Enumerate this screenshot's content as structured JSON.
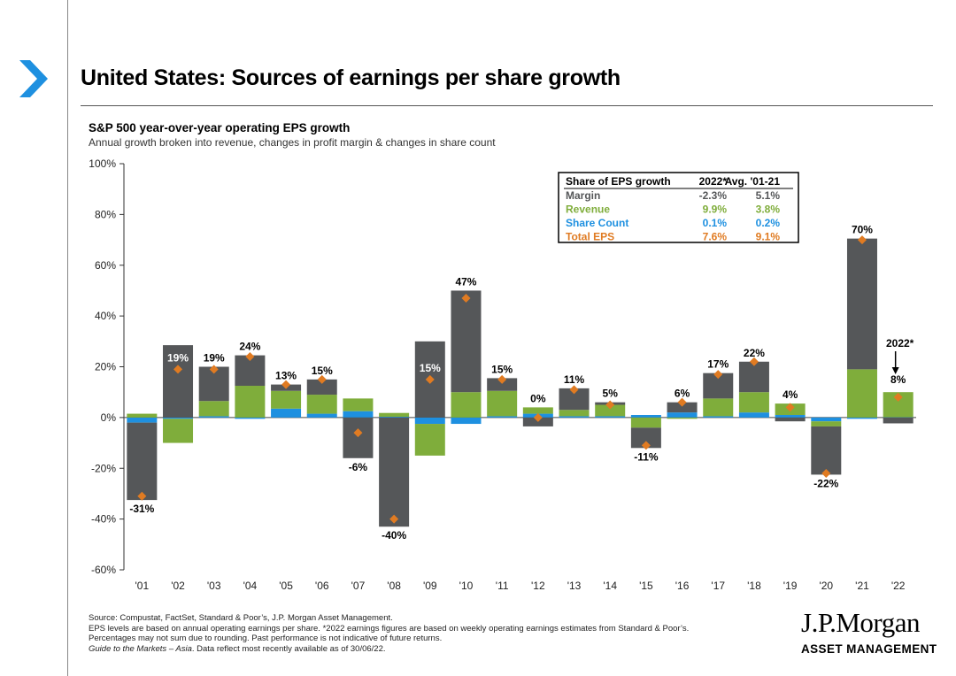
{
  "page": {
    "title": "United States: Sources of earnings per share growth"
  },
  "colors": {
    "margin": "#555759",
    "revenue": "#7fad3b",
    "share_count": "#1e90e0",
    "total_eps": "#e07b22",
    "accent": "#1e90e0"
  },
  "chart_data": {
    "type": "bar",
    "stacked": true,
    "title": "S&P 500 year-over-year operating EPS growth",
    "subtitle": "Annual growth broken into revenue, changes in profit margin & changes in share count",
    "ylim": [
      -60,
      100
    ],
    "yticks": [
      "100%",
      "80%",
      "60%",
      "40%",
      "20%",
      "0%",
      "-20%",
      "-40%",
      "-60%"
    ],
    "ytick_values": [
      100,
      80,
      60,
      40,
      20,
      0,
      -20,
      -40,
      -60
    ],
    "categories": [
      "'01",
      "'02",
      "'03",
      "'04",
      "'05",
      "'06",
      "'07",
      "'08",
      "'09",
      "'10",
      "'11",
      "'12",
      "'13",
      "'14",
      "'15",
      "'16",
      "'17",
      "'18",
      "'19",
      "'20",
      "'21",
      "'22"
    ],
    "series": [
      {
        "name": "Share Count",
        "color_key": "share_count",
        "values": [
          -2,
          -0.5,
          0.5,
          -0.5,
          3.5,
          1.5,
          2.5,
          0.3,
          -2.5,
          -2.5,
          0.5,
          1.5,
          0.5,
          0.5,
          1,
          2,
          0.5,
          2,
          1,
          -1.5,
          -0.5,
          0.1
        ]
      },
      {
        "name": "Revenue",
        "color_key": "revenue",
        "values": [
          1.5,
          -9.5,
          6,
          12.5,
          7,
          7.5,
          5,
          1.5,
          -12.5,
          10,
          10,
          2.5,
          2.5,
          4.5,
          -4,
          -0.5,
          7,
          8,
          4.5,
          -2,
          19,
          9.9
        ]
      },
      {
        "name": "Margin",
        "color_key": "margin",
        "values": [
          -30.5,
          28.5,
          13.5,
          12,
          2.5,
          6,
          -16,
          -43,
          30,
          40,
          5,
          -3.5,
          8.5,
          1,
          -8,
          4,
          10,
          12,
          -1.5,
          -19,
          51.5,
          -2.3
        ]
      }
    ],
    "total_eps": [
      -31,
      19,
      19,
      24,
      13,
      15,
      -6,
      -40,
      15,
      47,
      15,
      0,
      11,
      5,
      -11,
      6,
      17,
      22,
      4,
      -22,
      70,
      8
    ],
    "bar_labels": [
      "-31%",
      "19%",
      "19%",
      "24%",
      "13%",
      "15%",
      "-6%",
      "-40%",
      "15%",
      "47%",
      "15%",
      "0%",
      "11%",
      "5%",
      "-11%",
      "6%",
      "17%",
      "22%",
      "4%",
      "-22%",
      "70%",
      "8%"
    ],
    "annotation": "2022*",
    "legend_table": {
      "headers": [
        "Share of EPS growth",
        "2022*",
        "Avg. '01-21"
      ],
      "rows": [
        {
          "name": "Margin",
          "v2022": "-2.3%",
          "avg": "5.1%",
          "color_key": "margin"
        },
        {
          "name": "Revenue",
          "v2022": "9.9%",
          "avg": "3.8%",
          "color_key": "revenue"
        },
        {
          "name": "Share Count",
          "v2022": "0.1%",
          "avg": "0.2%",
          "color_key": "share_count"
        },
        {
          "name": "Total EPS",
          "v2022": "7.6%",
          "avg": "9.1%",
          "color_key": "total_eps"
        }
      ]
    }
  },
  "footer": {
    "line1": "Source: Compustat, FactSet, Standard & Poor’s, J.P. Morgan Asset Management.",
    "line2": "EPS levels are based on annual operating earnings per share. *2022 earnings figures are based on weekly operating earnings estimates from Standard & Poor’s.",
    "line3": "Percentages may not sum due to rounding. Past performance is not indicative of future returns.",
    "line4_italic": "Guide to the Markets – Asia",
    "line4_rest": ". Data reflect most recently available as of 30/06/22."
  },
  "logo": {
    "main": "J.P.Morgan",
    "sub": "ASSET MANAGEMENT"
  }
}
